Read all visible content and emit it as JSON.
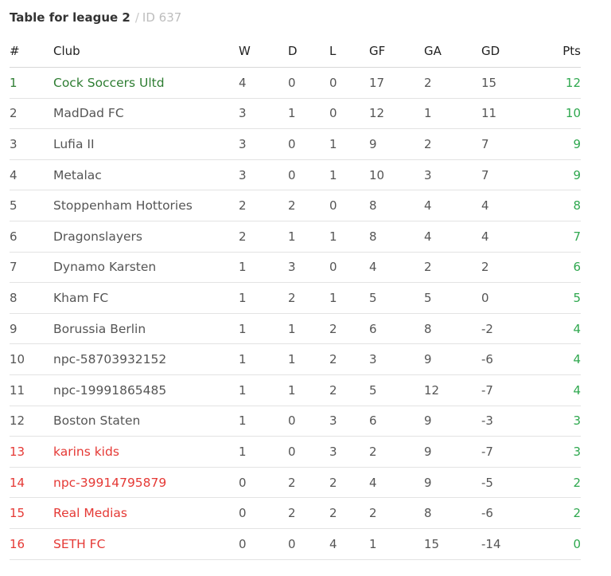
{
  "header": {
    "title": "Table for league 2",
    "separator": "/",
    "id_label": "ID 637"
  },
  "columns": [
    "#",
    "Club",
    "W",
    "D",
    "L",
    "GF",
    "GA",
    "GD",
    "Pts"
  ],
  "colors": {
    "promotion": "#2e7d32",
    "relegation": "#e53935",
    "points": "#2fa84f"
  },
  "rows": [
    {
      "pos": "1",
      "club": "Cock Soccers Ultd",
      "w": "4",
      "d": "0",
      "l": "0",
      "gf": "17",
      "ga": "2",
      "gd": "15",
      "pts": "12",
      "zone": "promo"
    },
    {
      "pos": "2",
      "club": "MadDad FC",
      "w": "3",
      "d": "1",
      "l": "0",
      "gf": "12",
      "ga": "1",
      "gd": "11",
      "pts": "10",
      "zone": ""
    },
    {
      "pos": "3",
      "club": "Lufia II",
      "w": "3",
      "d": "0",
      "l": "1",
      "gf": "9",
      "ga": "2",
      "gd": "7",
      "pts": "9",
      "zone": ""
    },
    {
      "pos": "4",
      "club": "Metalac",
      "w": "3",
      "d": "0",
      "l": "1",
      "gf": "10",
      "ga": "3",
      "gd": "7",
      "pts": "9",
      "zone": ""
    },
    {
      "pos": "5",
      "club": "Stoppenham Hottories",
      "w": "2",
      "d": "2",
      "l": "0",
      "gf": "8",
      "ga": "4",
      "gd": "4",
      "pts": "8",
      "zone": ""
    },
    {
      "pos": "6",
      "club": "Dragonslayers",
      "w": "2",
      "d": "1",
      "l": "1",
      "gf": "8",
      "ga": "4",
      "gd": "4",
      "pts": "7",
      "zone": ""
    },
    {
      "pos": "7",
      "club": "Dynamo Karsten",
      "w": "1",
      "d": "3",
      "l": "0",
      "gf": "4",
      "ga": "2",
      "gd": "2",
      "pts": "6",
      "zone": ""
    },
    {
      "pos": "8",
      "club": "Kham FC",
      "w": "1",
      "d": "2",
      "l": "1",
      "gf": "5",
      "ga": "5",
      "gd": "0",
      "pts": "5",
      "zone": ""
    },
    {
      "pos": "9",
      "club": "Borussia Berlin",
      "w": "1",
      "d": "1",
      "l": "2",
      "gf": "6",
      "ga": "8",
      "gd": "-2",
      "pts": "4",
      "zone": ""
    },
    {
      "pos": "10",
      "club": "npc-58703932152",
      "w": "1",
      "d": "1",
      "l": "2",
      "gf": "3",
      "ga": "9",
      "gd": "-6",
      "pts": "4",
      "zone": ""
    },
    {
      "pos": "11",
      "club": "npc-19991865485",
      "w": "1",
      "d": "1",
      "l": "2",
      "gf": "5",
      "ga": "12",
      "gd": "-7",
      "pts": "4",
      "zone": ""
    },
    {
      "pos": "12",
      "club": "Boston Staten",
      "w": "1",
      "d": "0",
      "l": "3",
      "gf": "6",
      "ga": "9",
      "gd": "-3",
      "pts": "3",
      "zone": ""
    },
    {
      "pos": "13",
      "club": "karins kids",
      "w": "1",
      "d": "0",
      "l": "3",
      "gf": "2",
      "ga": "9",
      "gd": "-7",
      "pts": "3",
      "zone": "releg"
    },
    {
      "pos": "14",
      "club": "npc-39914795879",
      "w": "0",
      "d": "2",
      "l": "2",
      "gf": "4",
      "ga": "9",
      "gd": "-5",
      "pts": "2",
      "zone": "releg"
    },
    {
      "pos": "15",
      "club": "Real Medias",
      "w": "0",
      "d": "2",
      "l": "2",
      "gf": "2",
      "ga": "8",
      "gd": "-6",
      "pts": "2",
      "zone": "releg"
    },
    {
      "pos": "16",
      "club": "SETH FC",
      "w": "0",
      "d": "0",
      "l": "4",
      "gf": "1",
      "ga": "15",
      "gd": "-14",
      "pts": "0",
      "zone": "releg"
    }
  ]
}
